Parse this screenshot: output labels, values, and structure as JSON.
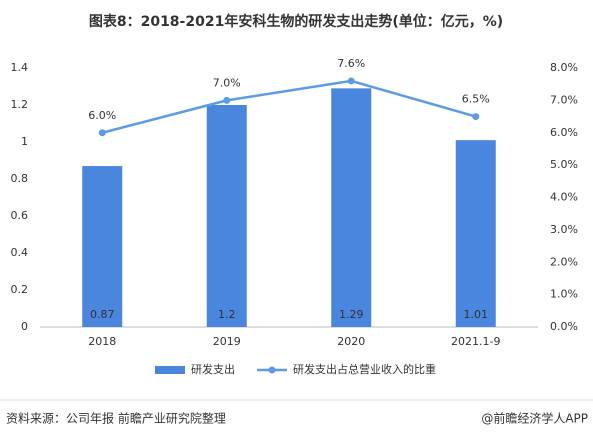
{
  "chart_data": {
    "type": "bar",
    "title": "图表8：2018-2021年安科生物的研发支出走势(单位：亿元，%)",
    "categories": [
      "2018",
      "2019",
      "2020",
      "2021.1-9"
    ],
    "series": [
      {
        "name": "研发支出",
        "type": "bar",
        "color": "#4a86de",
        "values": [
          0.87,
          1.2,
          1.29,
          1.01
        ]
      },
      {
        "name": "研发支出占总营业收入的比重",
        "type": "line",
        "axis": "y2",
        "color": "#5b9be8",
        "values": [
          6.0,
          7.0,
          7.6,
          6.5
        ],
        "value_labels": [
          "6.0%",
          "7.0%",
          "7.6%",
          "6.5%"
        ]
      }
    ],
    "ylim": [
      0,
      1.4
    ],
    "yticks": [
      0,
      0.2,
      0.4,
      0.6,
      0.8,
      1,
      1.2,
      1.4
    ],
    "y2lim": [
      0,
      8
    ],
    "y2ticks": [
      {
        "value": 0,
        "label": "0.0%"
      },
      {
        "value": 1,
        "label": "1.0%"
      },
      {
        "value": 2,
        "label": "2.0%"
      },
      {
        "value": 3,
        "label": "3.0%"
      },
      {
        "value": 4,
        "label": "4.0%"
      },
      {
        "value": 5,
        "label": "5.0%"
      },
      {
        "value": 6,
        "label": "6.0%"
      },
      {
        "value": 7,
        "label": "7.0%"
      },
      {
        "value": 8,
        "label": "8.0%"
      }
    ],
    "legend": "bottom",
    "source": "资料来源：公司年报 前瞻产业研究院整理",
    "credit": "@前瞻经济学人APP"
  }
}
